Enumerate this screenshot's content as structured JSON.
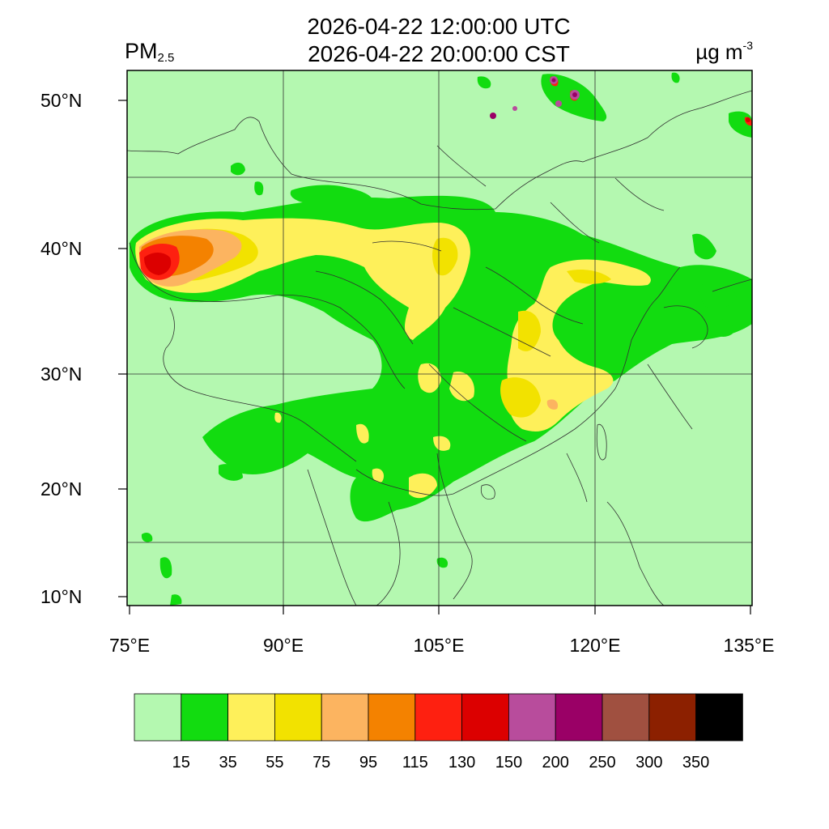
{
  "header": {
    "variable_main": "PM",
    "variable_sub": "2.5",
    "title_utc": "2026-04-22 12:00:00 UTC",
    "title_cst": "2026-04-22 20:00:00 CST",
    "unit_main": "µg m",
    "unit_sup": "-3"
  },
  "axes": {
    "lat_labels": [
      "50°N",
      "40°N",
      "30°N",
      "20°N",
      "10°N"
    ],
    "lon_labels": [
      "75°E",
      "90°E",
      "105°E",
      "120°E",
      "135°E"
    ]
  },
  "colorbar": {
    "colors": [
      "#b4f8b0",
      "#12dc10",
      "#fef05a",
      "#f2e200",
      "#fcb460",
      "#f48200",
      "#fe2010",
      "#dc0000",
      "#b84c9c",
      "#9a0066",
      "#a05040",
      "#8c2000",
      "#000000"
    ],
    "labels": [
      "15",
      "35",
      "55",
      "75",
      "95",
      "115",
      "130",
      "150",
      "200",
      "250",
      "300",
      "350"
    ]
  },
  "map_colors": {
    "background": "#b4f8b0",
    "band_15_35": "#12dc10",
    "band_35_55": "#fef05a",
    "band_55_75": "#f2e200",
    "band_75_95": "#fcb460",
    "band_95_115": "#f48200",
    "band_115_130": "#fe2010",
    "band_130_150": "#dc0000",
    "band_150_200": "#b84c9c",
    "band_200_250": "#9a0066",
    "boundary": "#404040"
  }
}
